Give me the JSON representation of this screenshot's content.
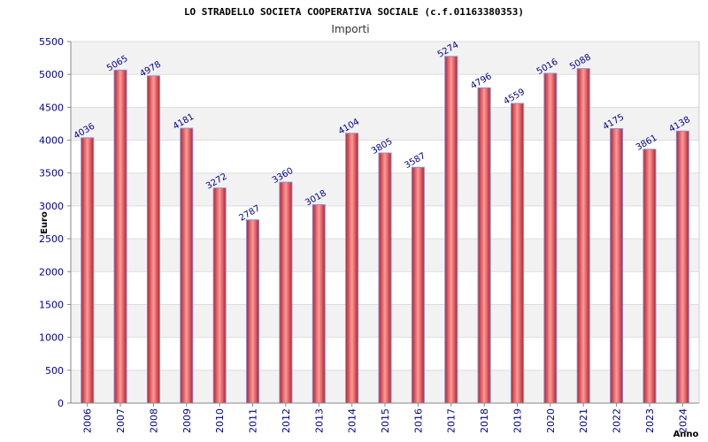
{
  "chart_data": {
    "type": "bar",
    "title": "LO STRADELLO SOCIETA COOPERATIVA SOCIALE (c.f.01163380353)",
    "subtitle": "Importi",
    "ylabel": "Euro",
    "xlabel": "Anno",
    "categories": [
      "2006",
      "2007",
      "2008",
      "2009",
      "2010",
      "2011",
      "2012",
      "2013",
      "2014",
      "2015",
      "2016",
      "2017",
      "2018",
      "2019",
      "2020",
      "2021",
      "2022",
      "2023",
      "2024"
    ],
    "values": [
      4036,
      5065,
      4978,
      4181,
      3272,
      2787,
      3360,
      3018,
      4104,
      3805,
      3587,
      5274,
      4796,
      4559,
      5016,
      5088,
      4175,
      3861,
      4138
    ],
    "ylim": [
      0,
      5500
    ],
    "yticks": [
      0,
      500,
      1000,
      1500,
      2000,
      2500,
      3000,
      3500,
      4000,
      4500,
      5000,
      5500
    ],
    "grid": true,
    "legend": "none",
    "colors": {
      "bar_edge": "#c0272d",
      "bar_center": "#ff8f8f",
      "bar_outline": "#8a8ad0",
      "label": "#00008b",
      "tick_label": "#00008b",
      "band": "#f2f2f2",
      "grid": "#dddddd",
      "axis": "#888888",
      "title": "#000000",
      "subtitle": "#333333"
    }
  }
}
